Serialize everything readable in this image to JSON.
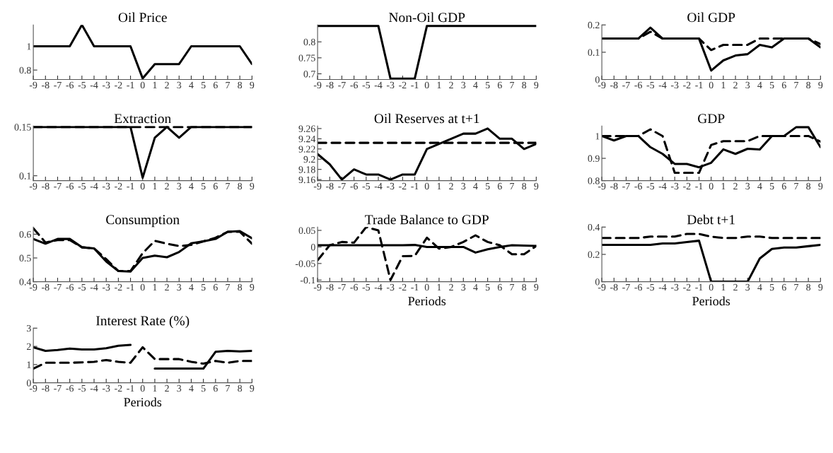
{
  "chart_data": [
    {
      "type": "line",
      "title": "Oil Price",
      "x": [
        -9,
        -8,
        -7,
        -6,
        -5,
        -4,
        -3,
        -2,
        -1,
        0,
        1,
        2,
        3,
        4,
        5,
        6,
        7,
        8,
        9
      ],
      "xlim": [
        -9,
        9
      ],
      "xticks": [
        -9,
        -8,
        -7,
        -6,
        -5,
        -4,
        -3,
        -2,
        -1,
        0,
        1,
        2,
        3,
        4,
        5,
        6,
        7,
        8,
        9
      ],
      "ylim": [
        0.72,
        1.18
      ],
      "yticks": [
        0.8,
        1
      ],
      "grid": false,
      "series": [
        {
          "color": "#000000",
          "line_style": "solid",
          "values": [
            1,
            1,
            1,
            1,
            1.18,
            1,
            1,
            1,
            1,
            0.73,
            0.85,
            0.85,
            0.85,
            1,
            1,
            1,
            1,
            1,
            0.85
          ]
        }
      ]
    },
    {
      "type": "line",
      "title": "Non-Oil GDP",
      "x": [
        -9,
        -8,
        -7,
        -6,
        -5,
        -4,
        -3,
        -2,
        -1,
        0,
        1,
        2,
        3,
        4,
        5,
        6,
        7,
        8,
        9
      ],
      "xlim": [
        -9,
        9
      ],
      "xticks": [
        -9,
        -8,
        -7,
        -6,
        -5,
        -4,
        -3,
        -2,
        -1,
        0,
        1,
        2,
        3,
        4,
        5,
        6,
        7,
        8,
        9
      ],
      "ylim": [
        0.682,
        0.853
      ],
      "yticks": [
        0.7,
        0.75,
        0.8
      ],
      "grid": false,
      "series": [
        {
          "color": "#000000",
          "line_style": "solid",
          "values": [
            0.85,
            0.85,
            0.85,
            0.85,
            0.85,
            0.85,
            0.685,
            0.685,
            0.685,
            0.85,
            0.85,
            0.85,
            0.85,
            0.85,
            0.85,
            0.85,
            0.85,
            0.85,
            0.85
          ]
        }
      ]
    },
    {
      "type": "line",
      "title": "Oil GDP",
      "x": [
        -9,
        -8,
        -7,
        -6,
        -5,
        -4,
        -3,
        -2,
        -1,
        0,
        1,
        2,
        3,
        4,
        5,
        6,
        7,
        8,
        9
      ],
      "xlim": [
        -9,
        9
      ],
      "xticks": [
        -9,
        -8,
        -7,
        -6,
        -5,
        -4,
        -3,
        -2,
        -1,
        0,
        1,
        2,
        3,
        4,
        5,
        6,
        7,
        8,
        9
      ],
      "ylim": [
        0,
        0.2
      ],
      "yticks": [
        0,
        0.1,
        0.2
      ],
      "grid": false,
      "series": [
        {
          "color": "#000000",
          "line_style": "dashed",
          "values": [
            0.15,
            0.15,
            0.15,
            0.15,
            0.175,
            0.15,
            0.15,
            0.15,
            0.15,
            0.108,
            0.127,
            0.127,
            0.127,
            0.15,
            0.15,
            0.15,
            0.15,
            0.15,
            0.13
          ]
        },
        {
          "color": "#000000",
          "line_style": "solid",
          "values": [
            0.15,
            0.15,
            0.15,
            0.15,
            0.19,
            0.15,
            0.15,
            0.15,
            0.15,
            0.033,
            0.07,
            0.088,
            0.093,
            0.127,
            0.118,
            0.15,
            0.15,
            0.15,
            0.118
          ]
        }
      ]
    },
    {
      "type": "line",
      "title": "Extraction",
      "x": [
        -9,
        -8,
        -7,
        -6,
        -5,
        -4,
        -3,
        -2,
        -1,
        0,
        1,
        2,
        3,
        4,
        5,
        6,
        7,
        8,
        9
      ],
      "xlim": [
        -9,
        9
      ],
      "xticks": [
        -9,
        -8,
        -7,
        -6,
        -5,
        -4,
        -3,
        -2,
        -1,
        0,
        1,
        2,
        3,
        4,
        5,
        6,
        7,
        8,
        9
      ],
      "ylim": [
        0.095,
        0.151
      ],
      "yticks": [
        0.1,
        0.15
      ],
      "grid": false,
      "series": [
        {
          "color": "#000000",
          "line_style": "dashed",
          "values": [
            0.15,
            0.15,
            0.15,
            0.15,
            0.15,
            0.15,
            0.15,
            0.15,
            0.15,
            0.15,
            0.15,
            0.15,
            0.15,
            0.15,
            0.15,
            0.15,
            0.15,
            0.15,
            0.15
          ]
        },
        {
          "color": "#000000",
          "line_style": "solid",
          "values": [
            0.15,
            0.15,
            0.15,
            0.15,
            0.15,
            0.15,
            0.15,
            0.15,
            0.15,
            0.098,
            0.139,
            0.15,
            0.139,
            0.15,
            0.15,
            0.15,
            0.15,
            0.15,
            0.15
          ]
        }
      ]
    },
    {
      "type": "line",
      "title": "Oil Reserves at t+1",
      "x": [
        -9,
        -8,
        -7,
        -6,
        -5,
        -4,
        -3,
        -2,
        -1,
        0,
        1,
        2,
        3,
        4,
        5,
        6,
        7,
        8,
        9
      ],
      "xlim": [
        -9,
        9
      ],
      "xticks": [
        -9,
        -8,
        -7,
        -6,
        -5,
        -4,
        -3,
        -2,
        -1,
        0,
        1,
        2,
        3,
        4,
        5,
        6,
        7,
        8,
        9
      ],
      "ylim": [
        9.158,
        9.265
      ],
      "yticks": [
        9.16,
        9.18,
        9.2,
        9.22,
        9.24,
        9.26
      ],
      "grid": false,
      "series": [
        {
          "color": "#000000",
          "line_style": "dashed",
          "values": [
            9.232,
            9.232,
            9.232,
            9.232,
            9.232,
            9.232,
            9.232,
            9.232,
            9.232,
            9.232,
            9.232,
            9.232,
            9.232,
            9.232,
            9.232,
            9.232,
            9.232,
            9.232,
            9.232
          ]
        },
        {
          "color": "#000000",
          "line_style": "solid",
          "values": [
            9.21,
            9.19,
            9.16,
            9.18,
            9.17,
            9.17,
            9.16,
            9.17,
            9.17,
            9.22,
            9.23,
            9.24,
            9.25,
            9.25,
            9.26,
            9.24,
            9.24,
            9.22,
            9.23
          ]
        }
      ]
    },
    {
      "type": "line",
      "title": "GDP",
      "x": [
        -9,
        -8,
        -7,
        -6,
        -5,
        -4,
        -3,
        -2,
        -1,
        0,
        1,
        2,
        3,
        4,
        5,
        6,
        7,
        8,
        9
      ],
      "xlim": [
        -9,
        9
      ],
      "xticks": [
        -9,
        -8,
        -7,
        -6,
        -5,
        -4,
        -3,
        -2,
        -1,
        0,
        1,
        2,
        3,
        4,
        5,
        6,
        7,
        8,
        9
      ],
      "ylim": [
        0.8,
        1.045
      ],
      "yticks": [
        0.8,
        0.9,
        1
      ],
      "grid": false,
      "series": [
        {
          "color": "#000000",
          "line_style": "dashed",
          "values": [
            1.0,
            1.0,
            1.0,
            1.0,
            1.03,
            1.0,
            0.835,
            0.835,
            0.835,
            0.96,
            0.977,
            0.977,
            0.977,
            1.0,
            1.0,
            1.0,
            1.0,
            1.0,
            0.975
          ]
        },
        {
          "color": "#000000",
          "line_style": "solid",
          "values": [
            1.0,
            0.98,
            1.0,
            1.0,
            0.95,
            0.92,
            0.875,
            0.875,
            0.86,
            0.88,
            0.94,
            0.92,
            0.943,
            0.94,
            1.0,
            1.0,
            1.04,
            1.04,
            0.95
          ]
        }
      ]
    },
    {
      "type": "line",
      "title": "Consumption",
      "x": [
        -9,
        -8,
        -7,
        -6,
        -5,
        -4,
        -3,
        -2,
        -1,
        0,
        1,
        2,
        3,
        4,
        5,
        6,
        7,
        8,
        9
      ],
      "xlim": [
        -9,
        9
      ],
      "xticks": [
        -9,
        -8,
        -7,
        -6,
        -5,
        -4,
        -3,
        -2,
        -1,
        0,
        1,
        2,
        3,
        4,
        5,
        6,
        7,
        8,
        9
      ],
      "ylim": [
        0.4,
        0.63
      ],
      "yticks": [
        0.4,
        0.5,
        0.6
      ],
      "grid": false,
      "series": [
        {
          "color": "#000000",
          "line_style": "dashed",
          "values": [
            0.625,
            0.565,
            0.575,
            0.575,
            0.545,
            0.54,
            0.495,
            0.445,
            0.445,
            0.52,
            0.572,
            0.56,
            0.55,
            0.555,
            0.57,
            0.585,
            0.61,
            0.61,
            0.56
          ]
        },
        {
          "color": "#000000",
          "line_style": "solid",
          "values": [
            0.58,
            0.56,
            0.58,
            0.58,
            0.545,
            0.54,
            0.485,
            0.445,
            0.443,
            0.5,
            0.51,
            0.503,
            0.525,
            0.562,
            0.57,
            0.58,
            0.61,
            0.613,
            0.583
          ]
        }
      ]
    },
    {
      "type": "line",
      "title": "Trade Balance to GDP",
      "xlabel": "Periods",
      "x": [
        -9,
        -8,
        -7,
        -6,
        -5,
        -4,
        -3,
        -2,
        -1,
        0,
        1,
        2,
        3,
        4,
        5,
        6,
        7,
        8,
        9
      ],
      "xlim": [
        -9,
        9
      ],
      "xticks": [
        -9,
        -8,
        -7,
        -6,
        -5,
        -4,
        -3,
        -2,
        -1,
        0,
        1,
        2,
        3,
        4,
        5,
        6,
        7,
        8,
        9
      ],
      "ylim": [
        -0.105,
        0.06
      ],
      "yticks": [
        -0.1,
        -0.05,
        0,
        0.05
      ],
      "grid": false,
      "series": [
        {
          "color": "#000000",
          "line_style": "dashed",
          "values": [
            -0.04,
            0.005,
            0.015,
            0.013,
            0.06,
            0.05,
            -0.1,
            -0.028,
            -0.027,
            0.028,
            -0.005,
            0.0,
            0.015,
            0.035,
            0.015,
            0.005,
            -0.022,
            -0.022,
            0.003
          ]
        },
        {
          "color": "#000000",
          "line_style": "solid",
          "values": [
            0.005,
            0.005,
            0.005,
            0.005,
            0.005,
            0.005,
            0.005,
            0.005,
            0.006,
            0.0,
            0.0,
            0.0,
            0.0,
            -0.017,
            -0.007,
            0.0,
            0.005,
            0.004,
            0.003
          ]
        }
      ]
    },
    {
      "type": "line",
      "title": "Debt t+1",
      "xlabel": "Periods",
      "x": [
        -9,
        -8,
        -7,
        -6,
        -5,
        -4,
        -3,
        -2,
        -1,
        0,
        1,
        2,
        3,
        4,
        5,
        6,
        7,
        8,
        9
      ],
      "xlim": [
        -9,
        9
      ],
      "xticks": [
        -9,
        -8,
        -7,
        -6,
        -5,
        -4,
        -3,
        -2,
        -1,
        0,
        1,
        2,
        3,
        4,
        5,
        6,
        7,
        8,
        9
      ],
      "ylim": [
        0,
        0.4
      ],
      "yticks": [
        0,
        0.2,
        0.4
      ],
      "grid": false,
      "series": [
        {
          "color": "#000000",
          "line_style": "dashed",
          "values": [
            0.32,
            0.32,
            0.32,
            0.32,
            0.33,
            0.33,
            0.33,
            0.35,
            0.35,
            0.33,
            0.32,
            0.32,
            0.33,
            0.33,
            0.32,
            0.32,
            0.32,
            0.32,
            0.32
          ]
        },
        {
          "color": "#000000",
          "line_style": "solid",
          "values": [
            0.27,
            0.27,
            0.27,
            0.27,
            0.27,
            0.28,
            0.28,
            0.29,
            0.3,
            0,
            0,
            0,
            0,
            0.17,
            0.24,
            0.25,
            0.25,
            0.26,
            0.27
          ]
        }
      ]
    },
    {
      "type": "line",
      "title": "Interest Rate (%)",
      "xlabel": "Periods",
      "x": [
        -9,
        -8,
        -7,
        -6,
        -5,
        -4,
        -3,
        -2,
        -1,
        0,
        1,
        2,
        3,
        4,
        5,
        6,
        7,
        8,
        9
      ],
      "xlim": [
        -9,
        9
      ],
      "xticks": [
        -9,
        -8,
        -7,
        -6,
        -5,
        -4,
        -3,
        -2,
        -1,
        0,
        1,
        2,
        3,
        4,
        5,
        6,
        7,
        8,
        9
      ],
      "ylim": [
        0,
        3
      ],
      "yticks": [
        0,
        1,
        2,
        3
      ],
      "grid": false,
      "series": [
        {
          "color": "#000000",
          "line_style": "dashed",
          "values": [
            0.78,
            1.1,
            1.1,
            1.1,
            1.12,
            1.15,
            1.25,
            1.15,
            1.1,
            1.95,
            1.3,
            1.3,
            1.3,
            1.15,
            1.05,
            1.2,
            1.1,
            1.2,
            1.2
          ]
        },
        {
          "color": "#000000",
          "line_style": "solid",
          "values": [
            1.95,
            1.75,
            1.8,
            1.88,
            1.83,
            1.83,
            1.9,
            2.03,
            2.08,
            null,
            0.78,
            0.78,
            0.78,
            0.78,
            0.78,
            1.7,
            1.75,
            1.72,
            1.75
          ]
        }
      ]
    }
  ]
}
